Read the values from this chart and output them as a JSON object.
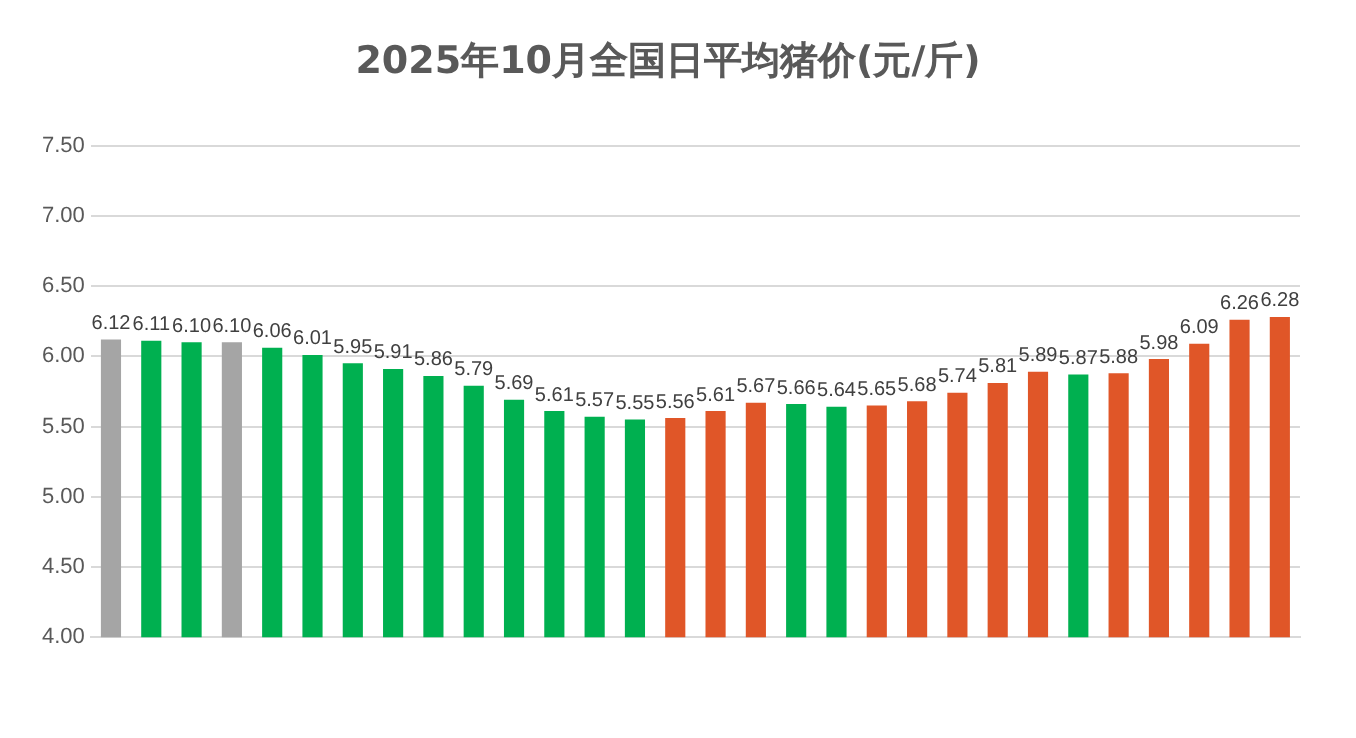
{
  "chart_data": {
    "type": "bar",
    "title": "2025年10月全国日平均猪价(元/斤)",
    "categories": [
      null,
      null,
      null,
      null,
      null,
      null,
      null,
      null,
      null,
      null,
      null,
      null,
      null,
      null,
      null,
      null,
      null,
      null,
      null,
      null,
      null,
      null,
      null,
      null,
      null,
      null,
      null,
      null,
      null,
      null
    ],
    "values": [
      6.12,
      6.11,
      6.1,
      6.1,
      6.06,
      6.01,
      5.95,
      5.91,
      5.86,
      5.79,
      5.69,
      5.61,
      5.57,
      5.55,
      5.56,
      5.61,
      5.67,
      5.66,
      5.64,
      5.65,
      5.68,
      5.74,
      5.81,
      5.89,
      5.87,
      5.88,
      5.98,
      6.09,
      6.26,
      6.28
    ],
    "colors": [
      "#a5a5a5",
      "#00b050",
      "#00b050",
      "#a5a5a5",
      "#00b050",
      "#00b050",
      "#00b050",
      "#00b050",
      "#00b050",
      "#00b050",
      "#00b050",
      "#00b050",
      "#00b050",
      "#00b050",
      "#e05628",
      "#e05628",
      "#e05628",
      "#00b050",
      "#00b050",
      "#e05628",
      "#e05628",
      "#e05628",
      "#e05628",
      "#e05628",
      "#00b050",
      "#e05628",
      "#e05628",
      "#e05628",
      "#e05628",
      "#e05628"
    ],
    "ylim": [
      4,
      7.5
    ],
    "yticks": [
      {
        "value": 4,
        "label": "4.00"
      },
      {
        "value": 4.5,
        "label": "4.50"
      },
      {
        "value": 5,
        "label": "5.00"
      },
      {
        "value": 5.5,
        "label": "5.50"
      },
      {
        "value": 6,
        "label": "6.00"
      },
      {
        "value": 6.5,
        "label": "6.50"
      },
      {
        "value": 7,
        "label": "7.00"
      },
      {
        "value": 7.5,
        "label": "7.50"
      }
    ],
    "value_labels": [
      "6.12",
      "6.11",
      "6.10",
      "6.10",
      "6.06",
      "6.01",
      "5.95",
      "5.91",
      "5.86",
      "5.79",
      "5.69",
      "5.61",
      "5.57",
      "5.55",
      "5.56",
      "5.61",
      "5.67",
      "5.66",
      "5.64",
      "5.65",
      "5.68",
      "5.74",
      "5.81",
      "5.89",
      "5.87",
      "5.88",
      "5.98",
      "6.09",
      "6.26",
      "6.28"
    ],
    "grid": "y",
    "legend": false
  }
}
